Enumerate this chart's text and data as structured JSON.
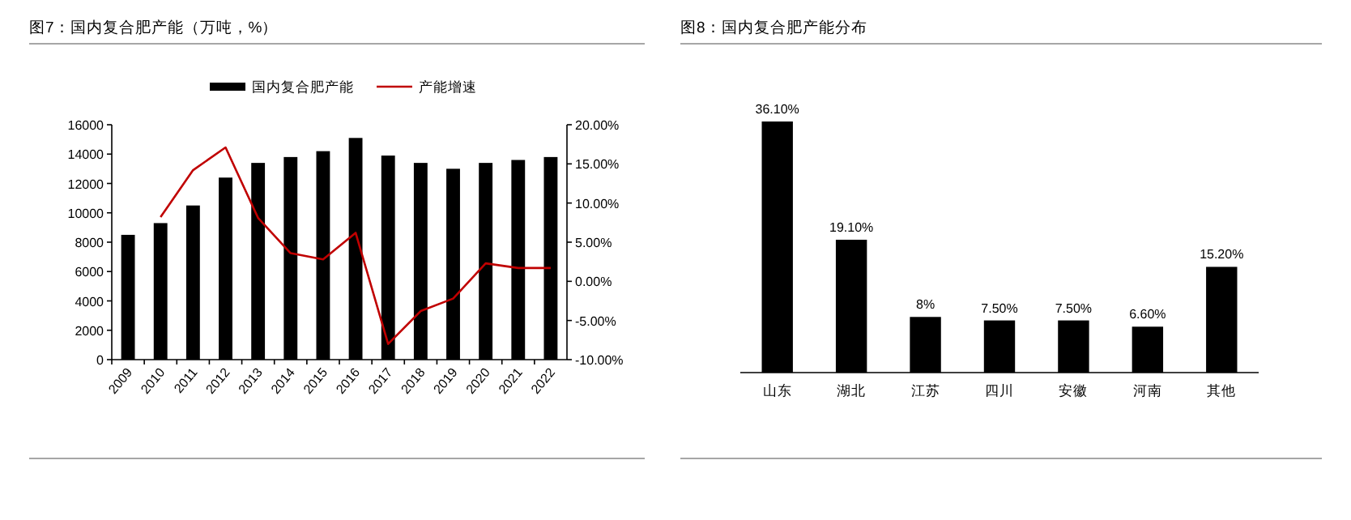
{
  "chart_data": [
    {
      "type": "bar",
      "title": "图7：国内复合肥产能（万吨，%）",
      "categories": [
        "2009",
        "2010",
        "2011",
        "2012",
        "2013",
        "2014",
        "2015",
        "2016",
        "2017",
        "2018",
        "2019",
        "2020",
        "2021",
        "2022"
      ],
      "series": [
        {
          "name": "国内复合肥产能",
          "color": "#000000",
          "values": [
            8500,
            9300,
            10500,
            12400,
            13400,
            13800,
            14200,
            15100,
            13900,
            13400,
            13000,
            13400,
            13600,
            13800
          ]
        },
        {
          "name": "产能增速",
          "type": "line",
          "axis": "y2",
          "color": "#c00000",
          "values": [
            null,
            8.2,
            14.2,
            17.1,
            8.1,
            3.6,
            2.8,
            6.2,
            -8.0,
            -3.8,
            -2.2,
            2.3,
            1.7,
            1.7
          ]
        }
      ],
      "ylim": [
        0,
        16000
      ],
      "yticks": [
        0,
        2000,
        4000,
        6000,
        8000,
        10000,
        12000,
        14000,
        16000
      ],
      "y2lim": [
        -10,
        20
      ],
      "y2ticks": [
        {
          "value": -10,
          "label": "-10.00%"
        },
        {
          "value": -5,
          "label": "-5.00%"
        },
        {
          "value": 0,
          "label": "0.00%"
        },
        {
          "value": 5,
          "label": "5.00%"
        },
        {
          "value": 10,
          "label": "10.00%"
        },
        {
          "value": 15,
          "label": "15.00%"
        },
        {
          "value": 20,
          "label": "20.00%"
        }
      ],
      "legend": "top",
      "grid": false
    },
    {
      "type": "bar",
      "title": "图8：国内复合肥产能分布",
      "categories": [
        "山东",
        "湖北",
        "江苏",
        "四川",
        "安徽",
        "河南",
        "其他"
      ],
      "values": [
        36.1,
        19.1,
        8,
        7.5,
        7.5,
        6.6,
        15.2
      ],
      "color": "#000000",
      "value_labels": [
        "36.10%",
        "19.10%",
        "8%",
        "7.50%",
        "7.50%",
        "6.60%",
        "15.20%"
      ]
    }
  ]
}
